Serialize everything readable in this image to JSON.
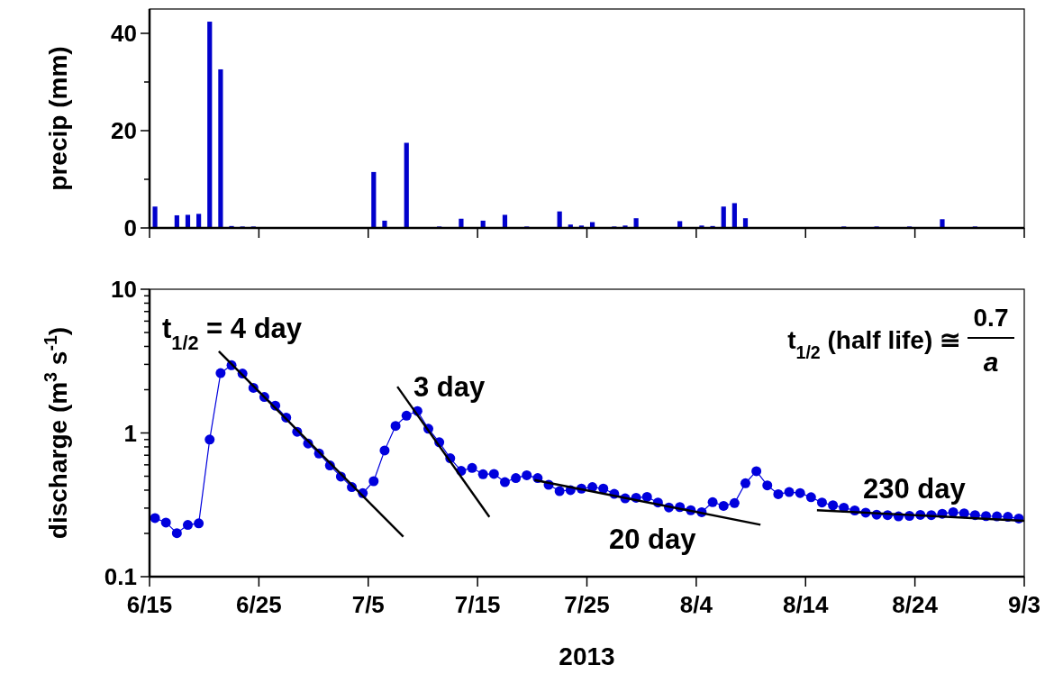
{
  "chart_data": [
    {
      "type": "bar",
      "ylabel": "precip (mm)",
      "color": "#0000cc",
      "xlim": [
        "2013-06-15",
        "2013-09-03"
      ],
      "ylim": [
        0,
        45
      ],
      "xticks": [
        {
          "value": "2013-06-15",
          "label": null
        },
        {
          "value": "2013-06-25",
          "label": null
        },
        {
          "value": "2013-07-05",
          "label": null
        },
        {
          "value": "2013-07-15",
          "label": null
        },
        {
          "value": "2013-07-25",
          "label": null
        },
        {
          "value": "2013-08-04",
          "label": null
        },
        {
          "value": "2013-08-14",
          "label": null
        },
        {
          "value": "2013-08-24",
          "label": null
        },
        {
          "value": "2013-09-03",
          "label": null
        }
      ],
      "yticks": [
        0,
        {
          "value": 10,
          "label": null
        },
        20,
        {
          "value": 30,
          "label": null
        },
        40
      ],
      "tick_labels": "y",
      "grid": false,
      "x": [
        "2013-06-15T12:00",
        "2013-06-17T12:00",
        "2013-06-18T12:00",
        "2013-06-19T12:00",
        "2013-06-20T12:00",
        "2013-06-21T12:00",
        "2013-06-22T12:00",
        "2013-06-23T12:00",
        "2013-06-24T12:00",
        "2013-07-05T12:00",
        "2013-07-06T12:00",
        "2013-07-08T12:00",
        "2013-07-11T12:00",
        "2013-07-13T12:00",
        "2013-07-15T12:00",
        "2013-07-17T12:00",
        "2013-07-19T12:00",
        "2013-07-22T12:00",
        "2013-07-23T12:00",
        "2013-07-24T12:00",
        "2013-07-25T12:00",
        "2013-07-27T12:00",
        "2013-07-28T12:00",
        "2013-07-29T12:00",
        "2013-08-02T12:00",
        "2013-08-04T12:00",
        "2013-08-05T12:00",
        "2013-08-06T12:00",
        "2013-08-07T12:00",
        "2013-08-08T12:00",
        "2013-08-17T12:00",
        "2013-08-20T12:00",
        "2013-08-23T12:00",
        "2013-08-26T12:00",
        "2013-08-29T12:00"
      ],
      "values": [
        4.4,
        2.6,
        2.7,
        2.9,
        42.4,
        32.6,
        0.4,
        0.3,
        0.3,
        11.5,
        1.5,
        17.5,
        0.3,
        1.9,
        1.5,
        2.7,
        0.3,
        3.4,
        0.7,
        0.5,
        1.2,
        0.3,
        0.5,
        2.0,
        1.4,
        0.5,
        0.4,
        4.4,
        5.1,
        2.0,
        0.3,
        0.3,
        0.3,
        1.8,
        0.3
      ]
    },
    {
      "type": "line",
      "xlabel": "2013",
      "ylabel": "discharge  (m$^{3}$ s$^{-1}$)",
      "log": "y",
      "grid": false,
      "xlim": [
        "2013-06-15",
        "2013-09-03"
      ],
      "ylim": [
        0.1,
        10
      ],
      "xticks": [
        {
          "value": "2013-06-15",
          "label": "6/15"
        },
        {
          "value": "2013-06-25",
          "label": "6/25"
        },
        {
          "value": "2013-07-05",
          "label": "7/5"
        },
        {
          "value": "2013-07-15",
          "label": "7/15"
        },
        {
          "value": "2013-07-25",
          "label": "7/25"
        },
        {
          "value": "2013-08-04",
          "label": "8/4"
        },
        {
          "value": "2013-08-14",
          "label": "8/14"
        },
        {
          "value": "2013-08-24",
          "label": "8/24"
        },
        {
          "value": "2013-09-03",
          "label": "9/3"
        }
      ],
      "yticks": [
        0.1,
        {
          "value": 0.2,
          "label": null
        },
        {
          "value": 0.3,
          "label": null
        },
        {
          "value": 0.4,
          "label": null
        },
        {
          "value": 0.5,
          "label": null
        },
        {
          "value": 0.6,
          "label": null
        },
        {
          "value": 0.7,
          "label": null
        },
        {
          "value": 0.8,
          "label": null
        },
        {
          "value": 0.9,
          "label": null
        },
        1,
        {
          "value": 2,
          "label": null
        },
        {
          "value": 3,
          "label": null
        },
        {
          "value": 4,
          "label": null
        },
        {
          "value": 5,
          "label": null
        },
        {
          "value": 6,
          "label": null
        },
        {
          "value": 7,
          "label": null
        },
        {
          "value": 8,
          "label": null
        },
        {
          "value": 9,
          "label": null
        },
        10
      ],
      "annotations": [
        "t$_{1/2}$ = 4 day",
        "3 day",
        "20 day",
        "230 day",
        "t$_{1/2}$ (half life) ≅",
        "0.7",
        "a"
      ],
      "series": [
        {
          "color": "#0000dd",
          "marker": "circle",
          "x": [
            "2013-06-15T12:00",
            "2013-06-16T12:00",
            "2013-06-17T12:00",
            "2013-06-18T12:00",
            "2013-06-19T12:00",
            "2013-06-20T12:00",
            "2013-06-21T12:00",
            "2013-06-22T12:00",
            "2013-06-23T12:00",
            "2013-06-24T12:00",
            "2013-06-25T12:00",
            "2013-06-26T12:00",
            "2013-06-27T12:00",
            "2013-06-28T12:00",
            "2013-06-29T12:00",
            "2013-06-30T12:00",
            "2013-07-01T12:00",
            "2013-07-02T12:00",
            "2013-07-03T12:00",
            "2013-07-04T12:00",
            "2013-07-05T12:00",
            "2013-07-06T12:00",
            "2013-07-07T12:00",
            "2013-07-08T12:00",
            "2013-07-09T12:00",
            "2013-07-10T12:00",
            "2013-07-11T12:00",
            "2013-07-12T12:00",
            "2013-07-13T12:00",
            "2013-07-14T12:00",
            "2013-07-15T12:00",
            "2013-07-16T12:00",
            "2013-07-17T12:00",
            "2013-07-18T12:00",
            "2013-07-19T12:00",
            "2013-07-20T12:00",
            "2013-07-21T12:00",
            "2013-07-22T12:00",
            "2013-07-23T12:00",
            "2013-07-24T12:00",
            "2013-07-25T12:00",
            "2013-07-26T12:00",
            "2013-07-27T12:00",
            "2013-07-28T12:00",
            "2013-07-29T12:00",
            "2013-07-30T12:00",
            "2013-07-31T12:00",
            "2013-08-01T12:00",
            "2013-08-02T12:00",
            "2013-08-03T12:00",
            "2013-08-04T12:00",
            "2013-08-05T12:00",
            "2013-08-06T12:00",
            "2013-08-07T12:00",
            "2013-08-08T12:00",
            "2013-08-09T12:00",
            "2013-08-10T12:00",
            "2013-08-11T12:00",
            "2013-08-12T12:00",
            "2013-08-13T12:00",
            "2013-08-14T12:00",
            "2013-08-15T12:00",
            "2013-08-16T12:00",
            "2013-08-17T12:00",
            "2013-08-18T12:00",
            "2013-08-19T12:00",
            "2013-08-20T12:00",
            "2013-08-21T12:00",
            "2013-08-22T12:00",
            "2013-08-23T12:00",
            "2013-08-24T12:00",
            "2013-08-25T12:00",
            "2013-08-26T12:00",
            "2013-08-27T12:00",
            "2013-08-28T12:00",
            "2013-08-29T12:00",
            "2013-08-30T12:00",
            "2013-08-31T12:00",
            "2013-09-01T12:00",
            "2013-09-02T12:00"
          ],
          "values": [
            0.256,
            0.238,
            0.201,
            0.229,
            0.235,
            0.9,
            2.61,
            2.96,
            2.59,
            2.06,
            1.78,
            1.55,
            1.28,
            1.02,
            0.845,
            0.72,
            0.594,
            0.497,
            0.42,
            0.381,
            0.462,
            0.756,
            1.12,
            1.32,
            1.42,
            1.07,
            0.861,
            0.667,
            0.545,
            0.571,
            0.516,
            0.519,
            0.455,
            0.485,
            0.508,
            0.485,
            0.436,
            0.394,
            0.4,
            0.41,
            0.42,
            0.41,
            0.377,
            0.351,
            0.354,
            0.359,
            0.328,
            0.303,
            0.305,
            0.29,
            0.281,
            0.33,
            0.311,
            0.325,
            0.447,
            0.542,
            0.432,
            0.375,
            0.388,
            0.382,
            0.357,
            0.328,
            0.314,
            0.302,
            0.289,
            0.279,
            0.27,
            0.268,
            0.263,
            0.265,
            0.269,
            0.268,
            0.274,
            0.281,
            0.276,
            0.268,
            0.264,
            0.263,
            0.261,
            0.254
          ]
        },
        {
          "color": "#000000",
          "marker": "none",
          "x": [
            "2013-06-21T08:00",
            "2013-07-08T05:00"
          ],
          "values": [
            3.7,
            0.19
          ]
        },
        {
          "color": "#000000",
          "marker": "none",
          "x": [
            "2013-07-07T16:00",
            "2013-07-16T02:00"
          ],
          "values": [
            2.1,
            0.26
          ]
        },
        {
          "color": "#000000",
          "marker": "none",
          "x": [
            "2013-07-20T05:00",
            "2013-08-09T21:00"
          ],
          "values": [
            0.47,
            0.23
          ]
        },
        {
          "color": "#000000",
          "marker": "none",
          "x": [
            "2013-08-15T01:00",
            "2013-09-03T00:00"
          ],
          "values": [
            0.29,
            0.245
          ]
        }
      ]
    }
  ]
}
